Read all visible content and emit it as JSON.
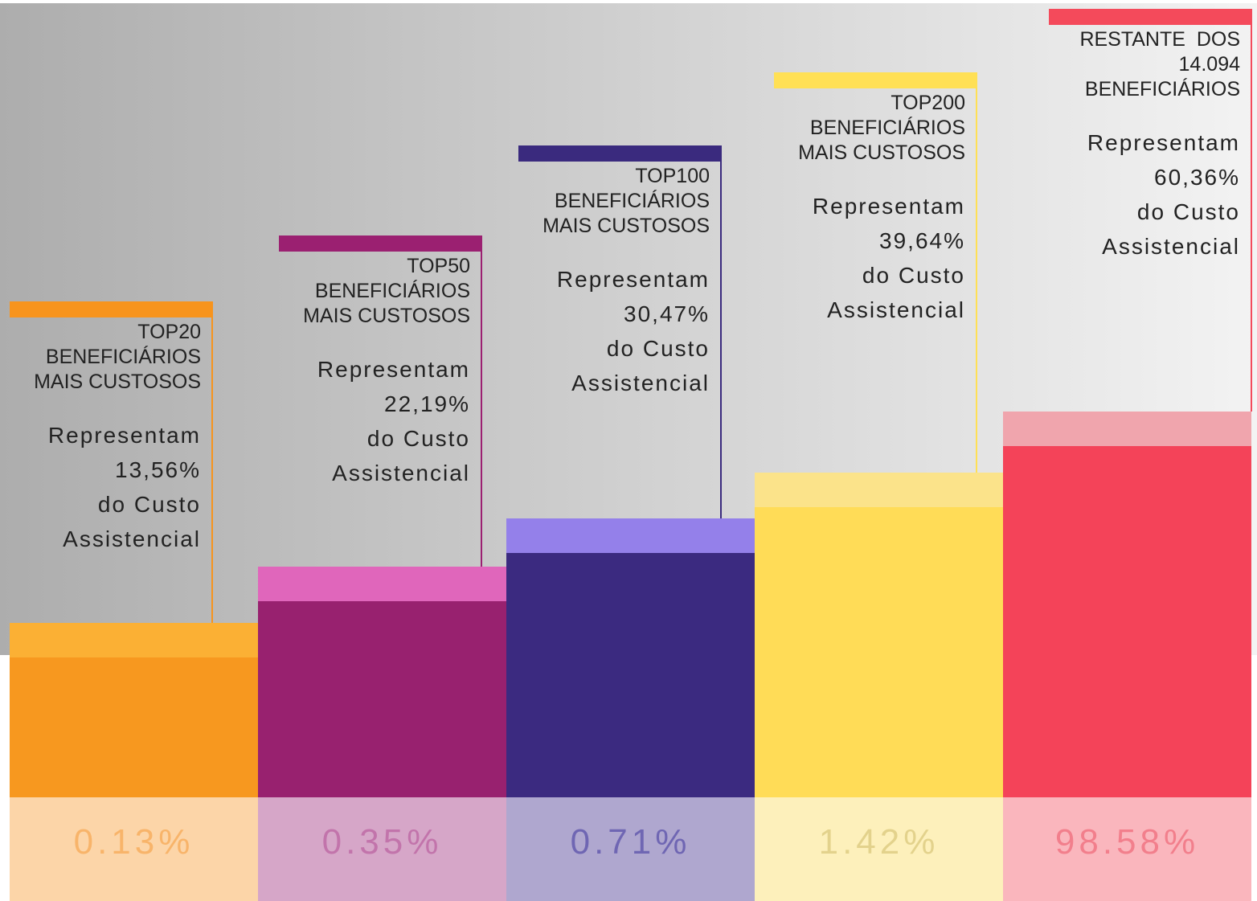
{
  "columns": [
    {
      "heading": [
        "TOP20",
        "BENEFICIÁRIOS",
        "MAIS CUSTOSOS"
      ],
      "description": [
        "Representam",
        "13,56%",
        "do Custo",
        "Assistencial"
      ],
      "share": "0.13%"
    },
    {
      "heading": [
        "TOP50",
        "BENEFICIÁRIOS",
        "MAIS CUSTOSOS"
      ],
      "description": [
        "Representam",
        "22,19%",
        "do Custo",
        "Assistencial"
      ],
      "share": "0.35%"
    },
    {
      "heading": [
        "TOP100",
        "BENEFICIÁRIOS",
        "MAIS CUSTOSOS"
      ],
      "description": [
        "Representam",
        "30,47%",
        "do Custo",
        "Assistencial"
      ],
      "share": "0.71%"
    },
    {
      "heading": [
        "TOP200",
        "BENEFICIÁRIOS",
        "MAIS CUSTOSOS"
      ],
      "description": [
        "Representam",
        "39,64%",
        "do Custo",
        "Assistencial"
      ],
      "share": "1.42%"
    },
    {
      "heading": [
        "RESTANTE  DOS",
        "14.094",
        "BENEFICIÁRIOS"
      ],
      "description": [
        "Representam",
        "60,36%",
        "do Custo",
        "Assistencial"
      ],
      "share": "98.58%"
    }
  ]
}
